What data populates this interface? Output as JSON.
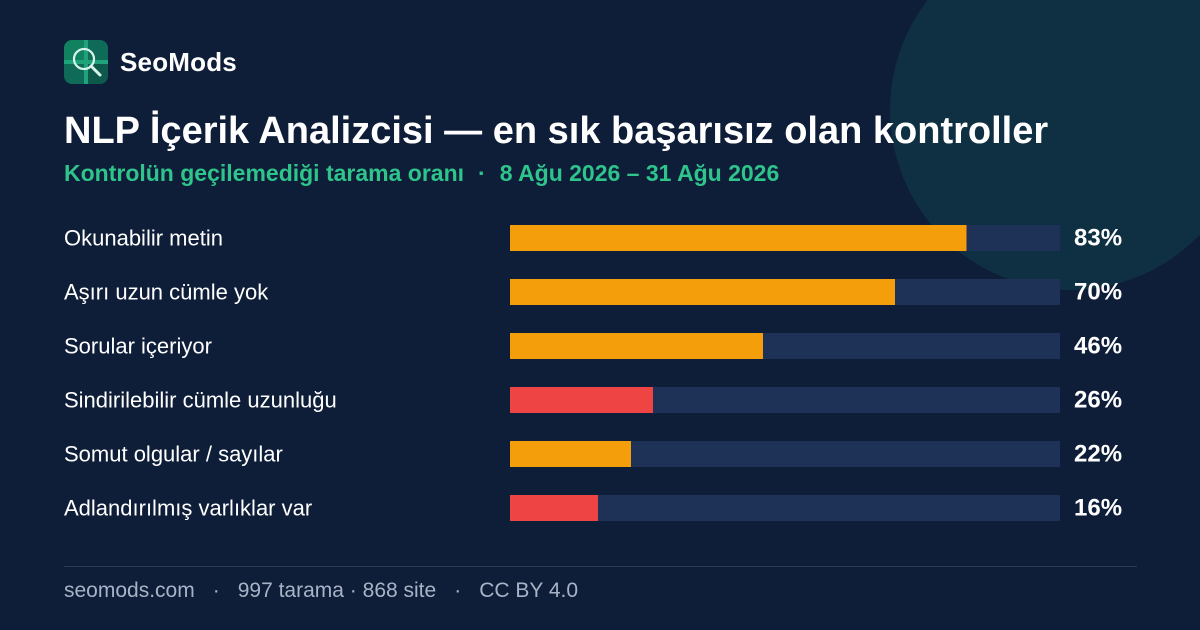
{
  "brand": {
    "name": "SeoMods",
    "logo_icon": "magnifier-icon",
    "logo_colors": [
      "#0f6b58",
      "#1fa37a"
    ]
  },
  "header": {
    "title": "NLP İçerik Analizcisi — en sık başarısız olan kontroller",
    "subtitle_metric": "Kontrolün geçilemediği tarama oranı",
    "subtitle_separator": "·",
    "subtitle_range": "8 Ağu 2026 – 31 Ağu 2026"
  },
  "chart_data": {
    "type": "bar",
    "orientation": "horizontal",
    "categories": [
      "Okunabilir metin",
      "Aşırı uzun cümle yok",
      "Sorular içeriyor",
      "Sindirilebilir cümle uzunluğu",
      "Somut olgular / sayılar",
      "Adlandırılmış varlıklar var"
    ],
    "values": [
      83,
      70,
      46,
      26,
      22,
      16
    ],
    "value_labels": [
      "83%",
      "70%",
      "46%",
      "26%",
      "22%",
      "16%"
    ],
    "bar_colors": [
      "#f59e0b",
      "#f59e0b",
      "#f59e0b",
      "#ef4444",
      "#f59e0b",
      "#ef4444"
    ],
    "track_color": "#1d3256",
    "xlim": [
      0,
      100
    ],
    "title": "",
    "xlabel": "",
    "ylabel": "",
    "grid": false,
    "legend": "none"
  },
  "footer": {
    "site": "seomods.com",
    "separator": "·",
    "scans": "997 tarama",
    "sites": "868 site",
    "license": "CC BY 4.0"
  },
  "colors": {
    "background": "#0e1d38",
    "accent": "#2ec48b",
    "warning": "#f59e0b",
    "danger": "#ef4444"
  }
}
